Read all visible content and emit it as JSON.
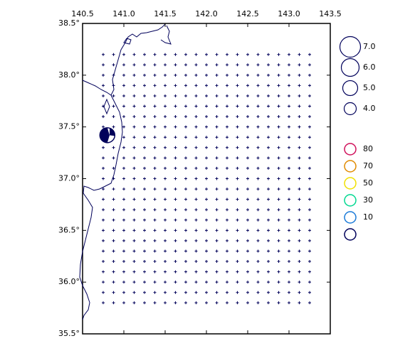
{
  "map": {
    "xlim": [
      140.5,
      143.5
    ],
    "ylim": [
      35.5,
      38.5
    ],
    "xticks": [
      140.5,
      {
        "value": 141,
        "label": "141.0"
      },
      141.5,
      {
        "value": 142,
        "label": "142.0"
      },
      142.5,
      {
        "value": 143,
        "label": "143.0"
      },
      143.5
    ],
    "yticks": [
      {
        "value": 35.5,
        "label": "35.5°"
      },
      {
        "value": 36,
        "label": "36.0°"
      },
      {
        "value": 36.5,
        "label": "36.5°"
      },
      {
        "value": 37,
        "label": "37.0°"
      },
      {
        "value": 37.5,
        "label": "37.5°"
      },
      {
        "value": 38,
        "label": "38.0°"
      },
      {
        "value": 38.5,
        "label": "38.5°"
      }
    ],
    "grid_points": {
      "lon": [
        140.75,
        143.25
      ],
      "lat": [
        35.8,
        38.2
      ],
      "lon_step": 0.125,
      "lat_step": 0.1,
      "color": "#00005a"
    },
    "events": [
      {
        "lon": 140.8,
        "lat": 37.42,
        "magnitude": 5,
        "color": "#00005a"
      }
    ],
    "magnitude_legend": [
      {
        "value": 7,
        "label": "7.0"
      },
      {
        "value": 6,
        "label": "6.0"
      },
      {
        "value": 5,
        "label": "5.0"
      },
      {
        "value": 4,
        "label": "4.0"
      }
    ],
    "depth_legend": {
      "values": [
        80,
        70,
        50,
        30,
        10,
        null
      ],
      "colors": [
        "#d0105a",
        "#e08a00",
        "#f0e000",
        "#00d890",
        "#1a7ad8",
        "#00005a"
      ]
    }
  }
}
